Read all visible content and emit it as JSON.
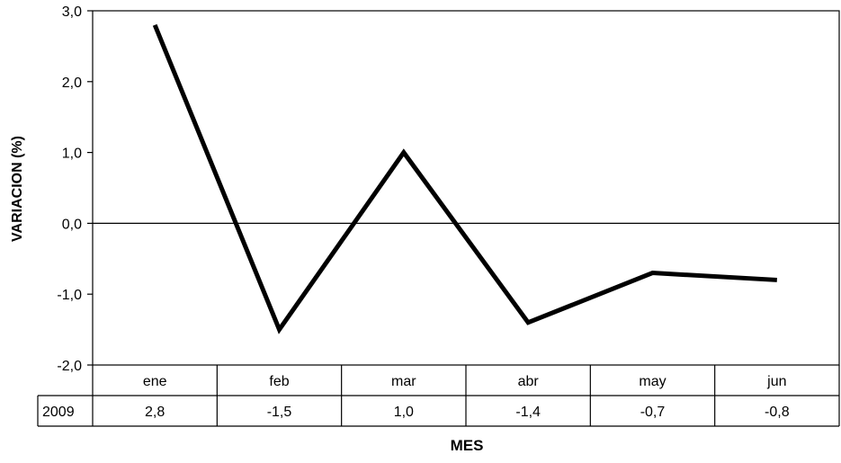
{
  "chart_data": {
    "type": "line",
    "title": "",
    "xlabel": "MES",
    "ylabel": "VARIACION (%)",
    "categories": [
      "ene",
      "feb",
      "mar",
      "abr",
      "may",
      "jun"
    ],
    "series": [
      {
        "name": "2009",
        "values": [
          2.8,
          -1.5,
          1.0,
          -1.4,
          -0.7,
          -0.8
        ],
        "value_labels": [
          "2,8",
          "-1,5",
          "1,0",
          "-1,4",
          "-0,7",
          "-0,8"
        ]
      }
    ],
    "ylim": [
      -2.0,
      3.0
    ],
    "yticks": [
      {
        "value": -2.0,
        "label": "-2,0"
      },
      {
        "value": -1.0,
        "label": "-1,0"
      },
      {
        "value": 0.0,
        "label": "0,0"
      },
      {
        "value": 1.0,
        "label": "1,0"
      },
      {
        "value": 2.0,
        "label": "2,0"
      },
      {
        "value": 3.0,
        "label": "3,0"
      }
    ],
    "zero_line": true,
    "grid": false,
    "legend": "data-table",
    "data_table": true,
    "line_color": "#000000"
  }
}
